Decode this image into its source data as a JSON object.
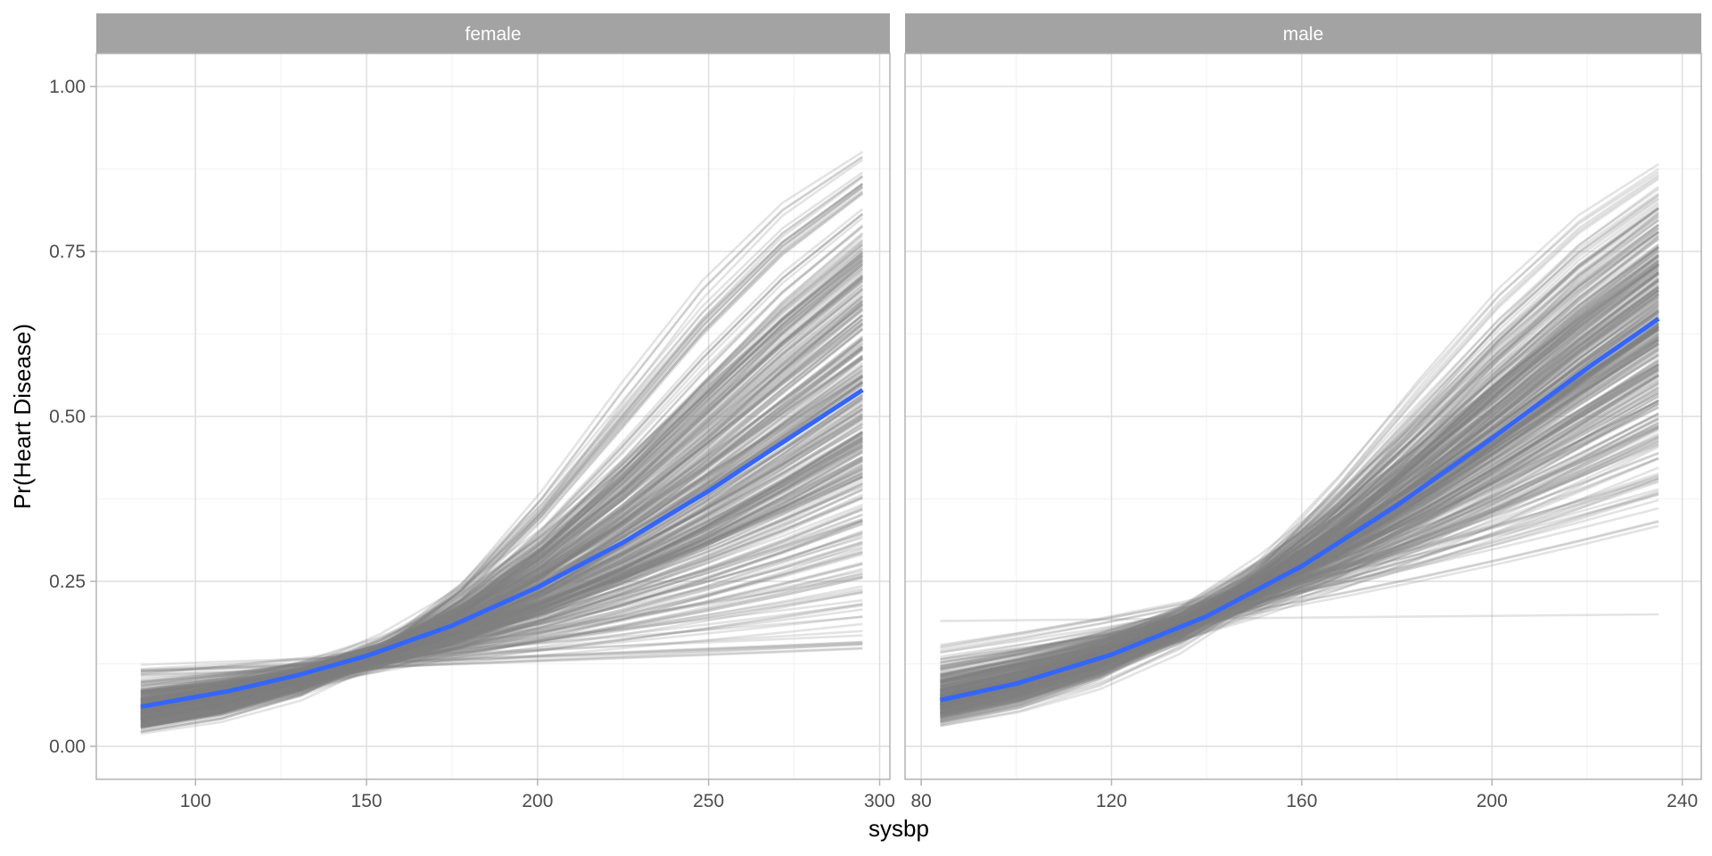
{
  "chart_data": {
    "type": "line",
    "xlabel": "sysbp",
    "ylabel": "Pr(Heart Disease)",
    "ylim": [
      0,
      1
    ],
    "yticks": [
      0,
      0.25,
      0.5,
      0.75,
      1.0
    ],
    "ytick_labels": [
      "0.00",
      "0.25",
      "0.50",
      "0.75",
      "1.00"
    ],
    "grid": true,
    "colors": {
      "draws": "#808080",
      "mean": "#3366FF",
      "strip": "#A3A3A3",
      "grid": "#DEDEDE",
      "border": "#B3B3B3"
    },
    "facets": [
      {
        "label": "female",
        "xlim": [
          71,
          303
        ],
        "xticks": [
          100,
          150,
          200,
          250,
          300
        ],
        "xtick_labels": [
          "100",
          "150",
          "200",
          "250",
          "300"
        ],
        "mean_curve": {
          "name": "posterior mean",
          "x": [
            84,
            110,
            130,
            150,
            175,
            200,
            225,
            250,
            275,
            295
          ],
          "y": [
            0.06,
            0.084,
            0.108,
            0.137,
            0.183,
            0.241,
            0.309,
            0.387,
            0.472,
            0.54
          ]
        },
        "draws": {
          "n": 400,
          "x_range": [
            84,
            295
          ],
          "pivot_x": 150,
          "pivot_logit": -1.9,
          "slope_mean": 0.0138,
          "slope_sd": 0.0055,
          "slope_range": [
            0.0017,
            0.0285
          ],
          "end_y_range": [
            0.16,
            0.9
          ],
          "start_y_range": [
            0.03,
            0.115
          ]
        }
      },
      {
        "label": "male",
        "xlim": [
          76.6,
          244
        ],
        "xticks": [
          80,
          120,
          160,
          200,
          240
        ],
        "xtick_labels": [
          "80",
          "120",
          "160",
          "200",
          "240"
        ],
        "mean_curve": {
          "name": "posterior mean",
          "x": [
            84,
            100,
            120,
            140,
            160,
            180,
            200,
            220,
            235
          ],
          "y": [
            0.07,
            0.095,
            0.139,
            0.197,
            0.273,
            0.365,
            0.467,
            0.573,
            0.648
          ]
        },
        "draws": {
          "n": 400,
          "x_range": [
            84,
            235
          ],
          "pivot_x": 140,
          "pivot_logit": -1.39,
          "slope_mean": 0.0212,
          "slope_sd": 0.0055,
          "slope_range": [
            0.0081,
            0.0356
          ],
          "end_y_range": [
            0.35,
            0.88
          ],
          "start_y_range": [
            0.04,
            0.135
          ],
          "outlier": {
            "x": [
              84,
              235
            ],
            "y": [
              0.19,
              0.2
            ]
          }
        }
      }
    ]
  }
}
